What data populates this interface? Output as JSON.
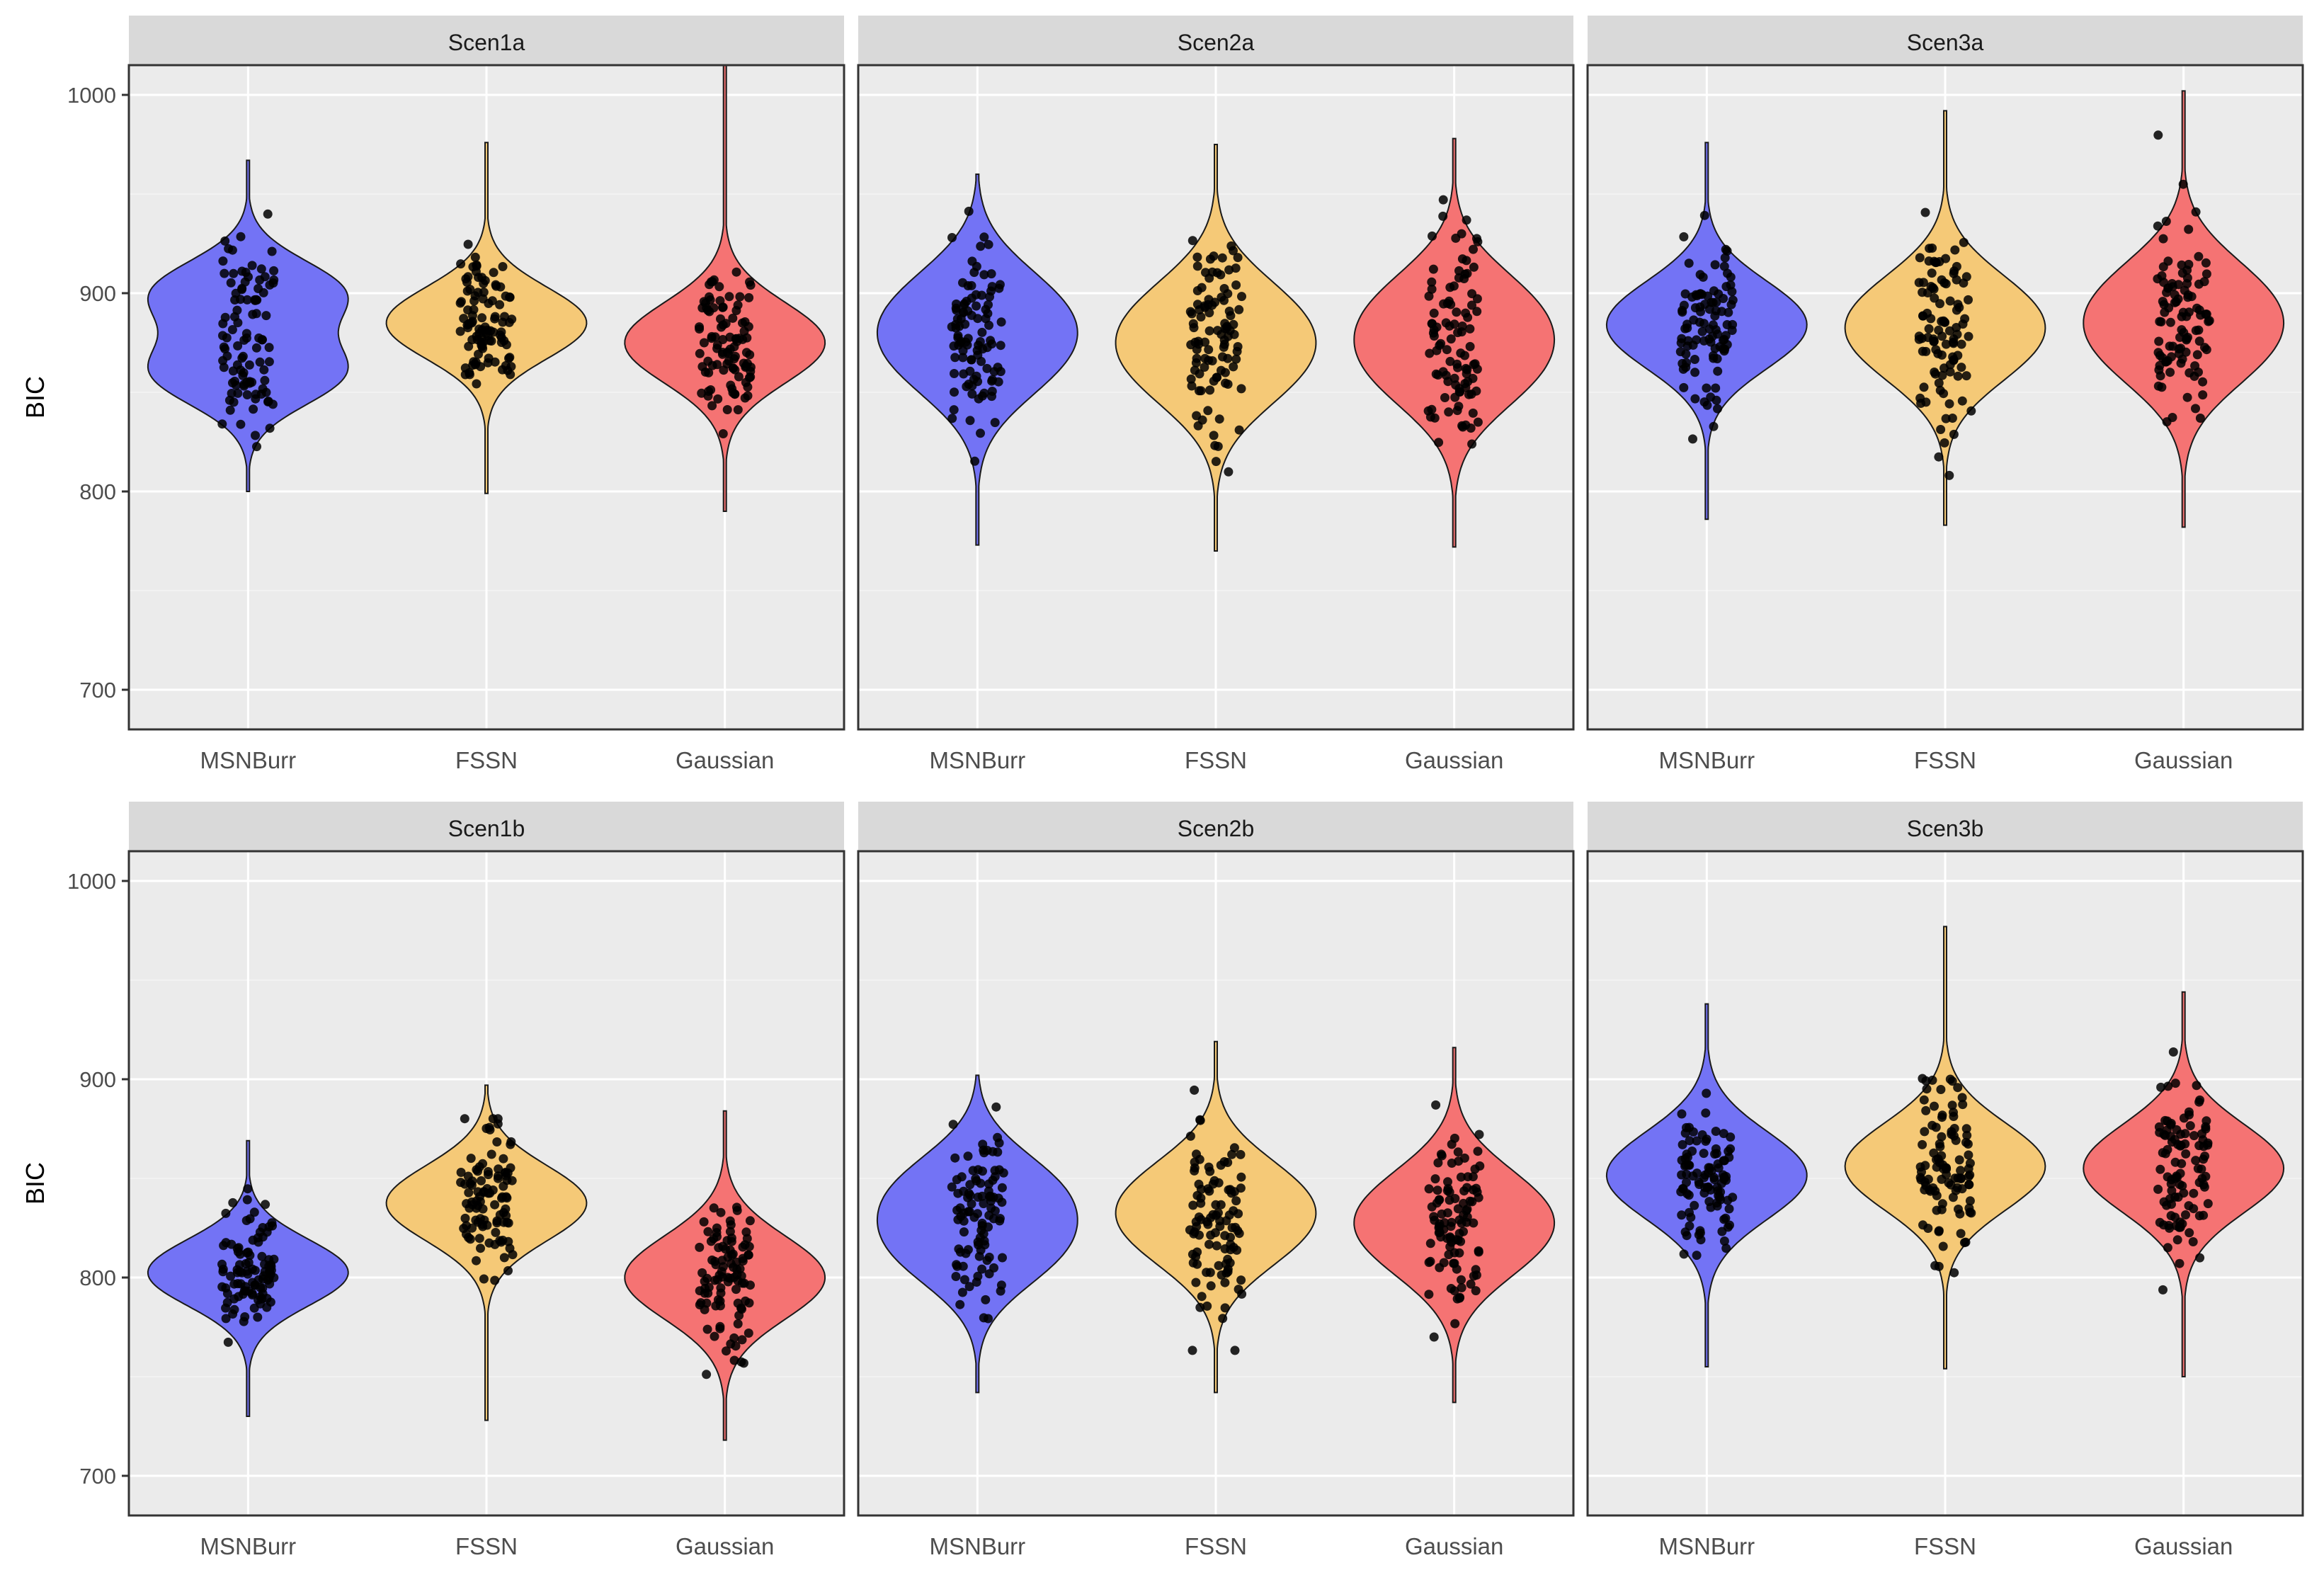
{
  "chart_data": {
    "type": "violin",
    "ylabel": "BIC",
    "ylim": [
      680,
      1015
    ],
    "yticks": [
      700,
      800,
      900,
      1000
    ],
    "categories": [
      "MSNBurr",
      "FSSN",
      "Gaussian"
    ],
    "colors": {
      "MSNBurr": "#7373f5",
      "FSSN": "#f5c977",
      "Gaussian": "#f57373"
    },
    "panel_background": "#ebebeb",
    "strip_background": "#d9d9d9",
    "facets": [
      {
        "label": "Scen1a",
        "series": [
          {
            "name": "MSNBurr",
            "min": 800,
            "max": 967,
            "mode1": 900,
            "mode2": 860,
            "center": 880,
            "spread": 22
          },
          {
            "name": "FSSN",
            "min": 799,
            "max": 976,
            "mode1": 885,
            "mode2": 885,
            "center": 883,
            "spread": 24
          },
          {
            "name": "Gaussian",
            "min": 790,
            "max": 1015,
            "mode1": 875,
            "mode2": 875,
            "center": 873,
            "spread": 27
          }
        ]
      },
      {
        "label": "Scen2a",
        "series": [
          {
            "name": "MSNBurr",
            "min": 773,
            "max": 960,
            "mode1": 895,
            "mode2": 865,
            "center": 870,
            "spread": 30
          },
          {
            "name": "FSSN",
            "min": 770,
            "max": 975,
            "mode1": 890,
            "mode2": 860,
            "center": 873,
            "spread": 30
          },
          {
            "name": "Gaussian",
            "min": 772,
            "max": 978,
            "mode1": 893,
            "mode2": 860,
            "center": 876,
            "spread": 30
          }
        ]
      },
      {
        "label": "Scen3a",
        "series": [
          {
            "name": "MSNBurr",
            "min": 786,
            "max": 976,
            "mode1": 893,
            "mode2": 875,
            "center": 882,
            "spread": 26
          },
          {
            "name": "FSSN",
            "min": 783,
            "max": 992,
            "mode1": 895,
            "mode2": 870,
            "center": 880,
            "spread": 28
          },
          {
            "name": "Gaussian",
            "min": 782,
            "max": 1002,
            "mode1": 900,
            "mode2": 870,
            "center": 890,
            "spread": 30
          }
        ]
      },
      {
        "label": "Scen1b",
        "series": [
          {
            "name": "MSNBurr",
            "min": 730,
            "max": 869,
            "mode1": 805,
            "mode2": 800,
            "center": 803,
            "spread": 22
          },
          {
            "name": "FSSN",
            "min": 728,
            "max": 897,
            "mode1": 840,
            "mode2": 835,
            "center": 823,
            "spread": 25
          },
          {
            "name": "Gaussian",
            "min": 718,
            "max": 884,
            "mode1": 805,
            "mode2": 795,
            "center": 800,
            "spread": 27
          }
        ]
      },
      {
        "label": "Scen2b",
        "series": [
          {
            "name": "MSNBurr",
            "min": 742,
            "max": 902,
            "mode1": 845,
            "mode2": 813,
            "center": 825,
            "spread": 27
          },
          {
            "name": "FSSN",
            "min": 742,
            "max": 919,
            "mode1": 845,
            "mode2": 820,
            "center": 830,
            "spread": 27
          },
          {
            "name": "Gaussian",
            "min": 737,
            "max": 916,
            "mode1": 840,
            "mode2": 815,
            "center": 826,
            "spread": 28
          }
        ]
      },
      {
        "label": "Scen3b",
        "series": [
          {
            "name": "MSNBurr",
            "min": 755,
            "max": 938,
            "mode1": 858,
            "mode2": 845,
            "center": 848,
            "spread": 28
          },
          {
            "name": "FSSN",
            "min": 754,
            "max": 977,
            "mode1": 862,
            "mode2": 850,
            "center": 858,
            "spread": 28
          },
          {
            "name": "Gaussian",
            "min": 750,
            "max": 944,
            "mode1": 862,
            "mode2": 848,
            "center": 853,
            "spread": 28
          }
        ]
      }
    ]
  }
}
